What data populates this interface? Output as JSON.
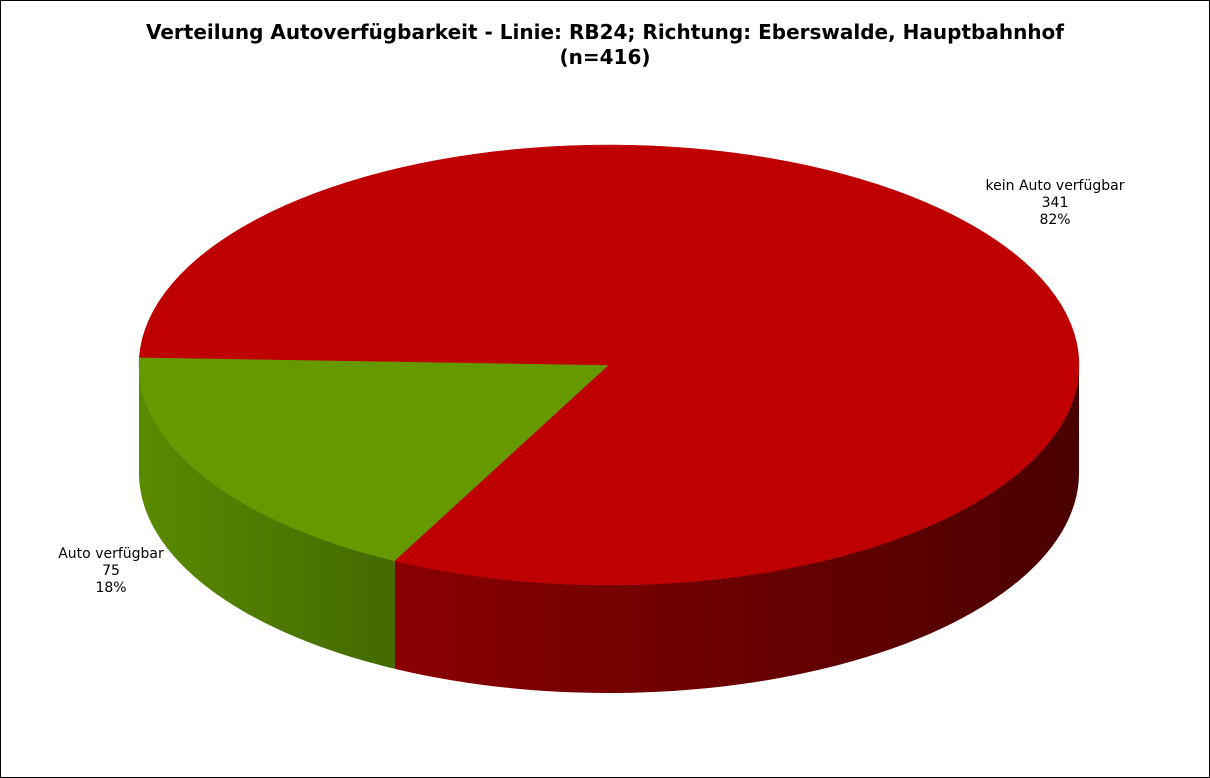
{
  "chart_data": {
    "type": "pie",
    "title_line1": "Verteilung Autoverfügbarkeit - Linie: RB24; Richtung: Eberswalde, Hauptbahnhof",
    "title_line2": "(n=416)",
    "three_d": true,
    "slices": [
      {
        "category": "kein Auto verfügbar",
        "value": 341,
        "percent_label": "82%",
        "color": "#bf0000",
        "side_color": "#7a0000"
      },
      {
        "category": "Auto verfügbar",
        "value": 75,
        "percent_label": "18%",
        "color": "#669900",
        "side_color": "#4a7300"
      }
    ],
    "legend": "none"
  }
}
